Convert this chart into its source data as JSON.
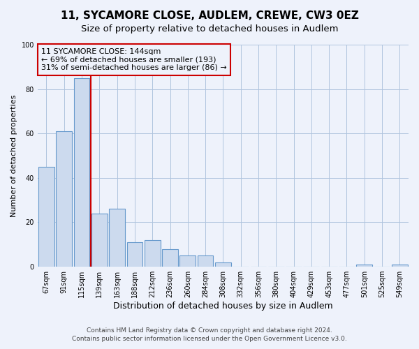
{
  "title": "11, SYCAMORE CLOSE, AUDLEM, CREWE, CW3 0EZ",
  "subtitle": "Size of property relative to detached houses in Audlem",
  "bar_labels": [
    "67sqm",
    "91sqm",
    "115sqm",
    "139sqm",
    "163sqm",
    "188sqm",
    "212sqm",
    "236sqm",
    "260sqm",
    "284sqm",
    "308sqm",
    "332sqm",
    "356sqm",
    "380sqm",
    "404sqm",
    "429sqm",
    "453sqm",
    "477sqm",
    "501sqm",
    "525sqm",
    "549sqm"
  ],
  "bar_values": [
    45,
    61,
    85,
    24,
    26,
    11,
    12,
    8,
    5,
    5,
    2,
    0,
    0,
    0,
    0,
    0,
    0,
    0,
    1,
    0,
    1
  ],
  "bar_color": "#ccdaee",
  "bar_edge_color": "#6699cc",
  "ylim": [
    0,
    100
  ],
  "yticks": [
    0,
    20,
    40,
    60,
    80,
    100
  ],
  "ylabel": "Number of detached properties",
  "xlabel": "Distribution of detached houses by size in Audlem",
  "vline_index": 3,
  "vline_color": "#cc0000",
  "annotation_title": "11 SYCAMORE CLOSE: 144sqm",
  "annotation_line1": "← 69% of detached houses are smaller (193)",
  "annotation_line2": "31% of semi-detached houses are larger (86) →",
  "annotation_box_edgecolor": "#cc0000",
  "footer_line1": "Contains HM Land Registry data © Crown copyright and database right 2024.",
  "footer_line2": "Contains public sector information licensed under the Open Government Licence v3.0.",
  "grid_color": "#b0c4de",
  "background_color": "#eef2fb",
  "title_fontsize": 11,
  "subtitle_fontsize": 9.5,
  "ylabel_fontsize": 8,
  "xlabel_fontsize": 9,
  "tick_fontsize": 7,
  "annot_fontsize": 8,
  "footer_fontsize": 6.5
}
